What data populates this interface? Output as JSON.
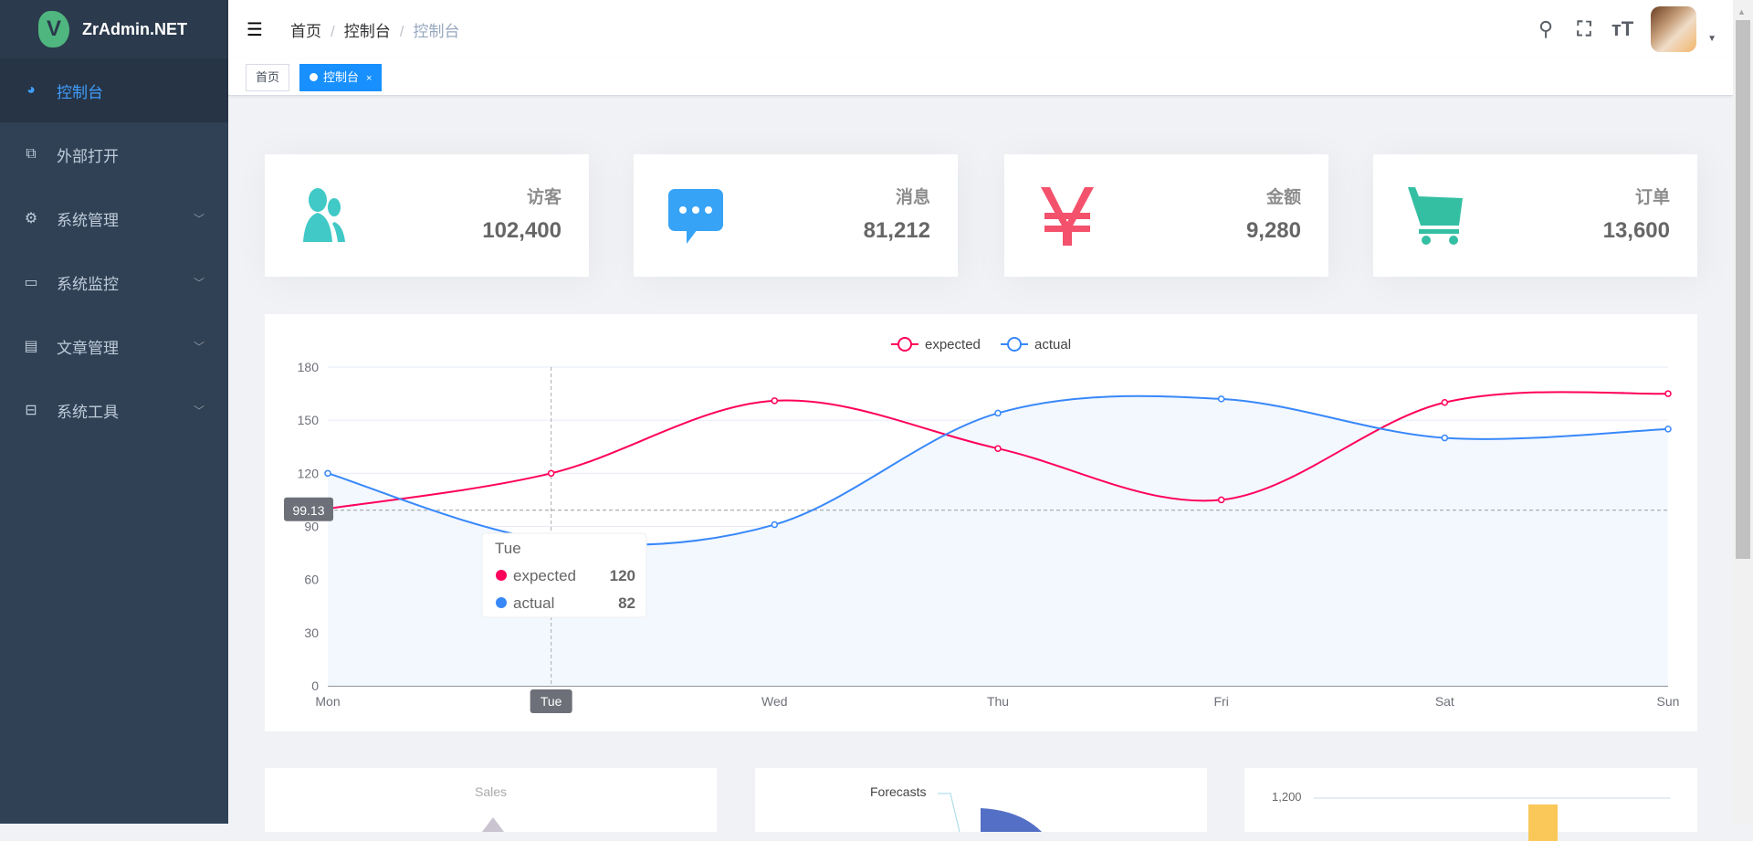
{
  "app": {
    "title": "ZrAdmin.NET",
    "logo_letter": "V"
  },
  "sidebar": {
    "items": [
      {
        "label": "控制台",
        "icon": "dashboard-icon",
        "active": true
      },
      {
        "label": "外部打开",
        "icon": "external-link-icon"
      },
      {
        "label": "系统管理",
        "icon": "gear-icon",
        "expandable": true
      },
      {
        "label": "系统监控",
        "icon": "monitor-icon",
        "expandable": true
      },
      {
        "label": "文章管理",
        "icon": "document-icon",
        "expandable": true
      },
      {
        "label": "系统工具",
        "icon": "toolbox-icon",
        "expandable": true
      }
    ]
  },
  "header": {
    "breadcrumb": [
      "首页",
      "控制台",
      "控制台"
    ],
    "separator": "/",
    "icons": [
      "search-icon",
      "fullscreen-icon",
      "font-size-icon"
    ]
  },
  "tags": [
    {
      "label": "首页"
    },
    {
      "label": "控制台",
      "active": true,
      "close": "×"
    }
  ],
  "cards": [
    {
      "label": "访客",
      "value": "102,400",
      "icon": "people-icon",
      "color": "#40c9c6"
    },
    {
      "label": "消息",
      "value": "81,212",
      "icon": "message-icon",
      "color": "#36a3f7"
    },
    {
      "label": "金额",
      "value": "9,280",
      "icon": "yen-icon",
      "color": "#f4516c"
    },
    {
      "label": "订单",
      "value": "13,600",
      "icon": "shopping-cart-icon",
      "color": "#34bfa3"
    }
  ],
  "chart_data": {
    "type": "line",
    "categories": [
      "Mon",
      "Tue",
      "Wed",
      "Thu",
      "Fri",
      "Sat",
      "Sun"
    ],
    "series": [
      {
        "name": "expected",
        "values": [
          100,
          120,
          161,
          134,
          105,
          160,
          165
        ],
        "color": "#FF005A"
      },
      {
        "name": "actual",
        "values": [
          120,
          82,
          91,
          154,
          162,
          140,
          145
        ],
        "color": "#3888fa",
        "area": true
      }
    ],
    "ylim": [
      0,
      180
    ],
    "yticks": [
      0,
      30,
      60,
      90,
      120,
      150,
      180
    ],
    "legend": "top-center",
    "grid": true,
    "crosshair": {
      "x": "Tue",
      "y_label": "99.13",
      "y": 99.13
    },
    "tooltip": {
      "title": "Tue",
      "rows": [
        {
          "name": "expected",
          "value": "120"
        },
        {
          "name": "actual",
          "value": "82"
        }
      ]
    }
  },
  "panels": {
    "radar_title": "Sales",
    "pie_label": "Forecasts",
    "bar_tick": "1,200"
  }
}
